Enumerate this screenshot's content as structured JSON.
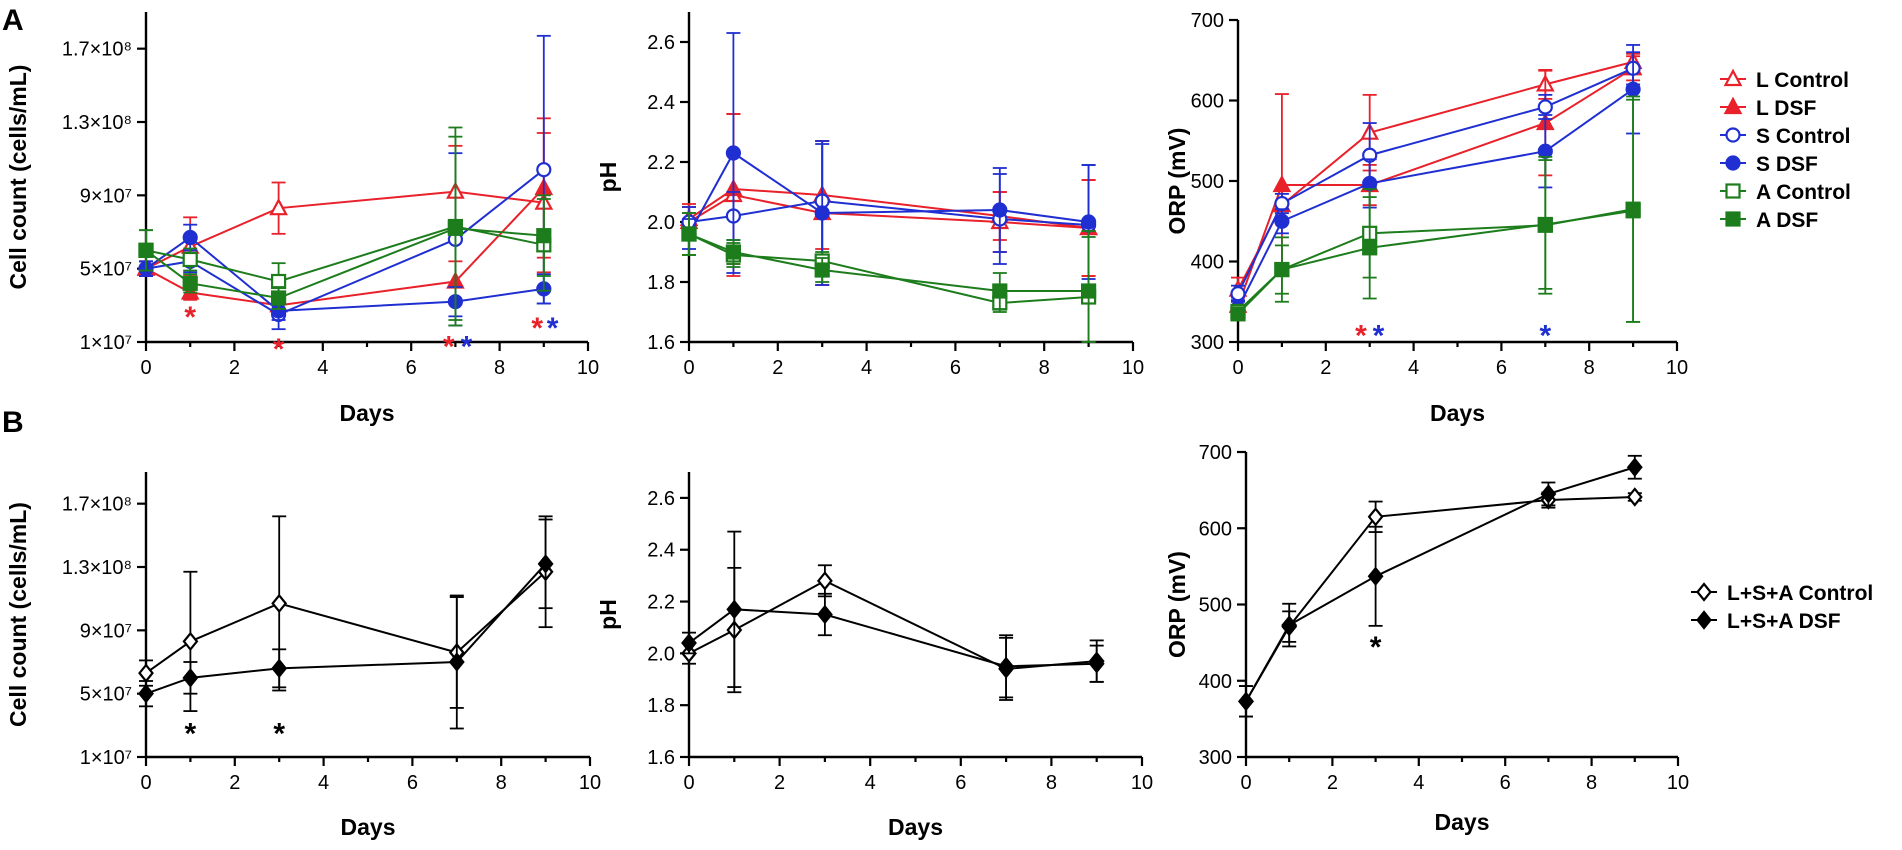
{
  "figure": {
    "panel_labels": [
      "A",
      "B"
    ],
    "colors": {
      "L": "#e8212b",
      "S": "#1f2fd1",
      "A": "#1d7d1d",
      "B": "#000000"
    }
  },
  "chart_data": [
    {
      "id": "A-cell",
      "type": "line",
      "panel": "A",
      "xlabel": "Days",
      "ylabel": "Cell count (cells/mL)",
      "xlim": [
        0,
        10
      ],
      "ylim": [
        10000000,
        190000000
      ],
      "xticks": [
        0,
        2,
        4,
        6,
        8,
        10
      ],
      "xtick_labels": [
        "0",
        "2",
        "4",
        "6",
        "8",
        "10"
      ],
      "yticks": [
        10000000,
        50000000,
        90000000,
        130000000,
        170000000
      ],
      "ytick_labels": [
        "1×10⁷",
        "5×10⁷",
        "9×10⁷",
        "1.3×10⁸",
        "1.7×10⁸"
      ],
      "series": [
        {
          "name": "L Control",
          "color": "L",
          "marker": "triangle",
          "filled": false,
          "x": [
            0,
            1,
            3,
            7,
            9
          ],
          "y": [
            50000000,
            62000000,
            83000000,
            92000000,
            86000000
          ],
          "err": [
            4000000,
            16000000,
            14000000,
            25000000,
            38000000
          ]
        },
        {
          "name": "L DSF",
          "color": "L",
          "marker": "triangle",
          "filled": true,
          "x": [
            0,
            1,
            3,
            7,
            9
          ],
          "y": [
            50000000,
            37000000,
            30000000,
            43000000,
            94000000
          ],
          "err": [
            4000000,
            4000000,
            3000000,
            11000000,
            38000000
          ]
        },
        {
          "name": "S Control",
          "color": "S",
          "marker": "circle",
          "filled": false,
          "x": [
            0,
            1,
            3,
            7,
            9
          ],
          "y": [
            50000000,
            54000000,
            25000000,
            66000000,
            104000000
          ],
          "err": [
            4000000,
            6000000,
            8000000,
            47000000,
            73000000
          ]
        },
        {
          "name": "S DSF",
          "color": "S",
          "marker": "circle",
          "filled": true,
          "x": [
            0,
            1,
            3,
            7,
            9
          ],
          "y": [
            50000000,
            67000000,
            27000000,
            32000000,
            39000000
          ],
          "err": [
            4000000,
            7000000,
            5000000,
            8000000,
            8000000
          ]
        },
        {
          "name": "A Control",
          "color": "A",
          "marker": "square",
          "filled": false,
          "x": [
            0,
            1,
            3,
            7,
            9
          ],
          "y": [
            60000000,
            55000000,
            43000000,
            73000000,
            63000000
          ],
          "err": [
            11000000,
            6000000,
            10000000,
            54000000,
            25000000
          ]
        },
        {
          "name": "A DSF",
          "color": "A",
          "marker": "square",
          "filled": true,
          "x": [
            0,
            1,
            3,
            7,
            9
          ],
          "y": [
            60000000,
            42000000,
            34000000,
            72000000,
            68000000
          ],
          "err": [
            11000000,
            5000000,
            6000000,
            50000000,
            22000000
          ]
        }
      ],
      "stars": [
        {
          "x": 1,
          "y": 28000000,
          "color": "L",
          "text": "*"
        },
        {
          "x": 3,
          "y": 10500000,
          "color": "L",
          "text": "*"
        },
        {
          "x": 6.85,
          "y": 12000000,
          "color": "L",
          "text": "*"
        },
        {
          "x": 7.25,
          "y": 12000000,
          "color": "S",
          "text": "*"
        },
        {
          "x": 8.85,
          "y": 22000000,
          "color": "L",
          "text": "*"
        },
        {
          "x": 9.2,
          "y": 22000000,
          "color": "S",
          "text": "*"
        }
      ]
    },
    {
      "id": "A-ph",
      "type": "line",
      "panel": "A",
      "xlabel": "",
      "ylabel": "pH",
      "xlim": [
        0,
        10
      ],
      "ylim": [
        1.6,
        2.7
      ],
      "xticks": [
        0,
        2,
        4,
        6,
        8,
        10
      ],
      "xtick_labels": [
        "0",
        "2",
        "4",
        "6",
        "8",
        "10"
      ],
      "yticks": [
        1.6,
        1.8,
        2.0,
        2.2,
        2.4,
        2.6
      ],
      "ytick_labels": [
        "1.6",
        "1.8",
        "2.0",
        "2.2",
        "2.4",
        "2.6"
      ],
      "series": [
        {
          "name": "L Control",
          "color": "L",
          "marker": "triangle",
          "filled": false,
          "x": [
            0,
            1,
            3,
            7,
            9
          ],
          "y": [
            2.0,
            2.09,
            2.03,
            2.0,
            1.98
          ],
          "err": [
            0.05,
            0.27,
            0.24,
            0.1,
            0.16
          ]
        },
        {
          "name": "L DSF",
          "color": "L",
          "marker": "triangle",
          "filled": true,
          "x": [
            0,
            1,
            3,
            7,
            9
          ],
          "y": [
            2.01,
            2.11,
            2.09,
            2.02,
            1.98
          ],
          "err": [
            0.05,
            0.25,
            0.18,
            0.08,
            0.16
          ]
        },
        {
          "name": "S Control",
          "color": "S",
          "marker": "circle",
          "filled": false,
          "x": [
            0,
            1,
            3,
            7,
            9
          ],
          "y": [
            2.0,
            2.02,
            2.07,
            2.01,
            1.99
          ],
          "err": [
            0.05,
            0.08,
            0.19,
            0.15,
            0.2
          ]
        },
        {
          "name": "S DSF",
          "color": "S",
          "marker": "circle",
          "filled": true,
          "x": [
            0,
            1,
            3,
            7,
            9
          ],
          "y": [
            1.96,
            2.23,
            2.03,
            2.04,
            2.0
          ],
          "err": [
            0.05,
            0.4,
            0.24,
            0.14,
            0.19
          ]
        },
        {
          "name": "A Control",
          "color": "A",
          "marker": "square",
          "filled": false,
          "x": [
            0,
            1,
            3,
            7,
            9
          ],
          "y": [
            1.96,
            1.89,
            1.87,
            1.73,
            1.75
          ],
          "err": [
            0.07,
            0.04,
            0.03,
            0.03,
            0.2
          ]
        },
        {
          "name": "A DSF",
          "color": "A",
          "marker": "square",
          "filled": true,
          "x": [
            0,
            1,
            3,
            7,
            9
          ],
          "y": [
            1.96,
            1.9,
            1.84,
            1.77,
            1.77
          ],
          "err": [
            0.07,
            0.04,
            0.04,
            0.06,
            0.2
          ]
        }
      ],
      "stars": []
    },
    {
      "id": "A-orp",
      "type": "line",
      "panel": "A",
      "xlabel": "Days",
      "ylabel": "ORP (mV)",
      "xlim": [
        0,
        10
      ],
      "ylim": [
        300,
        700
      ],
      "xticks": [
        0,
        2,
        4,
        6,
        8,
        10
      ],
      "xtick_labels": [
        "0",
        "2",
        "4",
        "6",
        "8",
        "10"
      ],
      "yticks": [
        300,
        400,
        500,
        600,
        700
      ],
      "ytick_labels": [
        "300",
        "400",
        "500",
        "600",
        "700"
      ],
      "series": [
        {
          "name": "L Control",
          "color": "L",
          "marker": "triangle",
          "filled": false,
          "x": [
            0,
            1,
            3,
            7,
            9
          ],
          "y": [
            365,
            470,
            560,
            620,
            648
          ],
          "err": [
            15,
            20,
            47,
            18,
            10
          ]
        },
        {
          "name": "L DSF",
          "color": "L",
          "marker": "triangle",
          "filled": true,
          "x": [
            0,
            1,
            3,
            7,
            9
          ],
          "y": [
            345,
            495,
            495,
            572,
            640
          ],
          "err": [
            10,
            113,
            25,
            65,
            15
          ]
        },
        {
          "name": "S Control",
          "color": "S",
          "marker": "circle",
          "filled": false,
          "x": [
            0,
            1,
            3,
            7,
            9
          ],
          "y": [
            360,
            472,
            532,
            592,
            640
          ],
          "err": [
            10,
            12,
            40,
            15,
            20
          ]
        },
        {
          "name": "S DSF",
          "color": "S",
          "marker": "circle",
          "filled": true,
          "x": [
            0,
            1,
            3,
            7,
            9
          ],
          "y": [
            342,
            450,
            497,
            537,
            614
          ],
          "err": [
            10,
            15,
            30,
            45,
            55
          ]
        },
        {
          "name": "A Control",
          "color": "A",
          "marker": "square",
          "filled": false,
          "x": [
            0,
            1,
            3,
            7,
            9
          ],
          "y": [
            338,
            390,
            435,
            445,
            465
          ],
          "err": [
            8,
            40,
            55,
            85,
            140
          ]
        },
        {
          "name": "A DSF",
          "color": "A",
          "marker": "square",
          "filled": true,
          "x": [
            0,
            1,
            3,
            7,
            9
          ],
          "y": [
            335,
            390,
            417,
            446,
            463
          ],
          "err": [
            8,
            30,
            63,
            80,
            138
          ]
        }
      ],
      "stars": [
        {
          "x": 2.8,
          "y": 318,
          "color": "L",
          "text": "*"
        },
        {
          "x": 3.2,
          "y": 318,
          "color": "S",
          "text": "*"
        },
        {
          "x": 7,
          "y": 318,
          "color": "S",
          "text": "*"
        }
      ]
    },
    {
      "id": "B-cell",
      "type": "line",
      "panel": "B",
      "xlabel": "Days",
      "ylabel": "Cell count (cells/mL)",
      "xlim": [
        0,
        10
      ],
      "ylim": [
        10000000,
        190000000
      ],
      "xticks": [
        0,
        2,
        4,
        6,
        8,
        10
      ],
      "xtick_labels": [
        "0",
        "2",
        "4",
        "6",
        "8",
        "10"
      ],
      "yticks": [
        10000000,
        50000000,
        90000000,
        130000000,
        170000000
      ],
      "ytick_labels": [
        "1×10⁷",
        "5×10⁷",
        "9×10⁷",
        "1.3×10⁸",
        "1.7×10⁸"
      ],
      "series": [
        {
          "name": "L+S+A Control",
          "color": "B",
          "marker": "diamond",
          "filled": false,
          "x": [
            0,
            1,
            3,
            7,
            9
          ],
          "y": [
            63000000,
            83000000,
            107000000,
            76000000,
            127000000
          ],
          "err": [
            8000000,
            44000000,
            55000000,
            35000000,
            35000000
          ]
        },
        {
          "name": "L+S+A DSF",
          "color": "B",
          "marker": "diamond",
          "filled": true,
          "x": [
            0,
            1,
            3,
            7,
            9
          ],
          "y": [
            50000000,
            60000000,
            66000000,
            70000000,
            132000000
          ],
          "err": [
            8000000,
            10000000,
            12000000,
            42000000,
            28000000
          ]
        }
      ],
      "stars": [
        {
          "x": 1,
          "y": 30000000,
          "color": "B",
          "text": "*"
        },
        {
          "x": 3,
          "y": 30000000,
          "color": "B",
          "text": "*"
        }
      ]
    },
    {
      "id": "B-ph",
      "type": "line",
      "panel": "B",
      "xlabel": "Days",
      "ylabel": "pH",
      "xlim": [
        0,
        10
      ],
      "ylim": [
        1.6,
        2.7
      ],
      "xticks": [
        0,
        2,
        4,
        6,
        8,
        10
      ],
      "xtick_labels": [
        "0",
        "2",
        "4",
        "6",
        "8",
        "10"
      ],
      "yticks": [
        1.6,
        1.8,
        2.0,
        2.2,
        2.4,
        2.6
      ],
      "ytick_labels": [
        "1.6",
        "1.8",
        "2.0",
        "2.2",
        "2.4",
        "2.6"
      ],
      "series": [
        {
          "name": "L+S+A Control",
          "color": "B",
          "marker": "diamond",
          "filled": false,
          "x": [
            0,
            1,
            3,
            7,
            9
          ],
          "y": [
            2.0,
            2.09,
            2.28,
            1.94,
            1.97
          ],
          "err": [
            0.04,
            0.24,
            0.06,
            0.12,
            0.08
          ]
        },
        {
          "name": "L+S+A DSF",
          "color": "B",
          "marker": "diamond",
          "filled": true,
          "x": [
            0,
            1,
            3,
            7,
            9
          ],
          "y": [
            2.04,
            2.17,
            2.15,
            1.95,
            1.96
          ],
          "err": [
            0.04,
            0.3,
            0.08,
            0.12,
            0.07
          ]
        }
      ],
      "stars": []
    },
    {
      "id": "B-orp",
      "type": "line",
      "panel": "B",
      "xlabel": "Days",
      "ylabel": "ORP (mV)",
      "xlim": [
        0,
        10
      ],
      "ylim": [
        300,
        700
      ],
      "xticks": [
        0,
        2,
        4,
        6,
        8,
        10
      ],
      "xtick_labels": [
        "0",
        "2",
        "4",
        "6",
        "8",
        "10"
      ],
      "yticks": [
        300,
        400,
        500,
        600,
        700
      ],
      "ytick_labels": [
        "300",
        "400",
        "500",
        "600",
        "700"
      ],
      "series": [
        {
          "name": "L+S+A Control",
          "color": "B",
          "marker": "diamond",
          "filled": false,
          "x": [
            0,
            1,
            3,
            7,
            9
          ],
          "y": [
            373,
            471,
            615,
            637,
            641
          ],
          "err": [
            20,
            20,
            20,
            10,
            5
          ]
        },
        {
          "name": "L+S+A DSF",
          "color": "B",
          "marker": "diamond",
          "filled": true,
          "x": [
            0,
            1,
            3,
            7,
            9
          ],
          "y": [
            373,
            473,
            537,
            645,
            680
          ],
          "err": [
            20,
            28,
            65,
            15,
            15
          ]
        }
      ],
      "stars": [
        {
          "x": 3,
          "y": 455,
          "color": "B",
          "text": "*"
        }
      ]
    }
  ],
  "legends": {
    "A": [
      "L Control",
      "L DSF",
      "S Control",
      "S DSF",
      "A Control",
      "A DSF"
    ],
    "B": [
      "L+S+A Control",
      "L+S+A DSF"
    ]
  }
}
